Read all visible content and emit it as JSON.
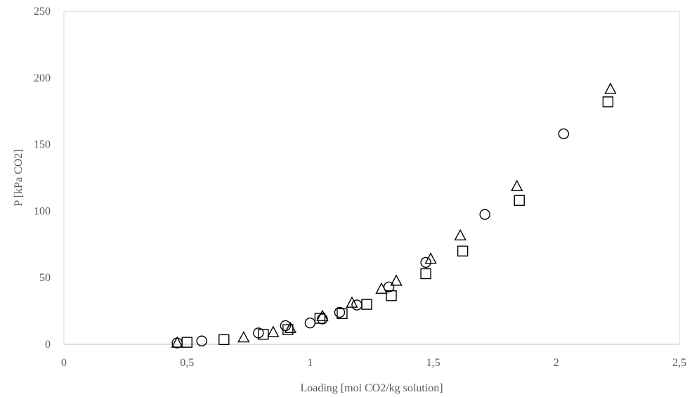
{
  "chart_data": {
    "type": "scatter",
    "title": "",
    "xlabel": "Loading [mol CO2/kg solution]",
    "ylabel": "P [kPa CO2]",
    "xlim": [
      0,
      2.5
    ],
    "ylim": [
      0,
      250
    ],
    "xticks": [
      0,
      0.5,
      1,
      1.5,
      2,
      2.5
    ],
    "xtick_labels": [
      "0",
      "0,5",
      "1",
      "1,5",
      "2",
      "2,5"
    ],
    "yticks": [
      0,
      50,
      100,
      150,
      200,
      250
    ],
    "ytick_labels": [
      "0",
      "50",
      "100",
      "150",
      "200",
      "250"
    ],
    "grid": false,
    "legend": "none",
    "series": [
      {
        "marker": "circle",
        "points": [
          [
            0.46,
            1.0
          ],
          [
            0.56,
            2.5
          ],
          [
            0.79,
            8.5
          ],
          [
            0.9,
            14.0
          ],
          [
            1.0,
            16.0
          ],
          [
            1.05,
            19.0
          ],
          [
            1.12,
            24.0
          ],
          [
            1.19,
            29.5
          ],
          [
            1.32,
            43.0
          ],
          [
            1.47,
            61.5
          ],
          [
            1.71,
            97.5
          ],
          [
            2.03,
            158.0
          ]
        ]
      },
      {
        "marker": "square",
        "points": [
          [
            0.5,
            1.5
          ],
          [
            0.65,
            3.5
          ],
          [
            0.81,
            7.5
          ],
          [
            0.91,
            11.0
          ],
          [
            1.04,
            19.5
          ],
          [
            1.13,
            23.0
          ],
          [
            1.23,
            30.0
          ],
          [
            1.33,
            36.5
          ],
          [
            1.47,
            53.0
          ],
          [
            1.62,
            70.0
          ],
          [
            1.85,
            108.0
          ],
          [
            2.21,
            182.0
          ]
        ]
      },
      {
        "marker": "triangle",
        "points": [
          [
            0.46,
            1.0
          ],
          [
            0.73,
            5.0
          ],
          [
            0.85,
            9.0
          ],
          [
            0.92,
            12.0
          ],
          [
            1.05,
            21.0
          ],
          [
            1.17,
            31.0
          ],
          [
            1.29,
            41.5
          ],
          [
            1.35,
            47.5
          ],
          [
            1.49,
            64.0
          ],
          [
            1.61,
            81.5
          ],
          [
            1.84,
            118.5
          ],
          [
            2.22,
            191.5
          ]
        ]
      }
    ],
    "colors": {
      "marker_stroke": "#000000",
      "axis": "#bfbfbf",
      "frame": "#d9d9d9",
      "text": "#595959"
    }
  }
}
